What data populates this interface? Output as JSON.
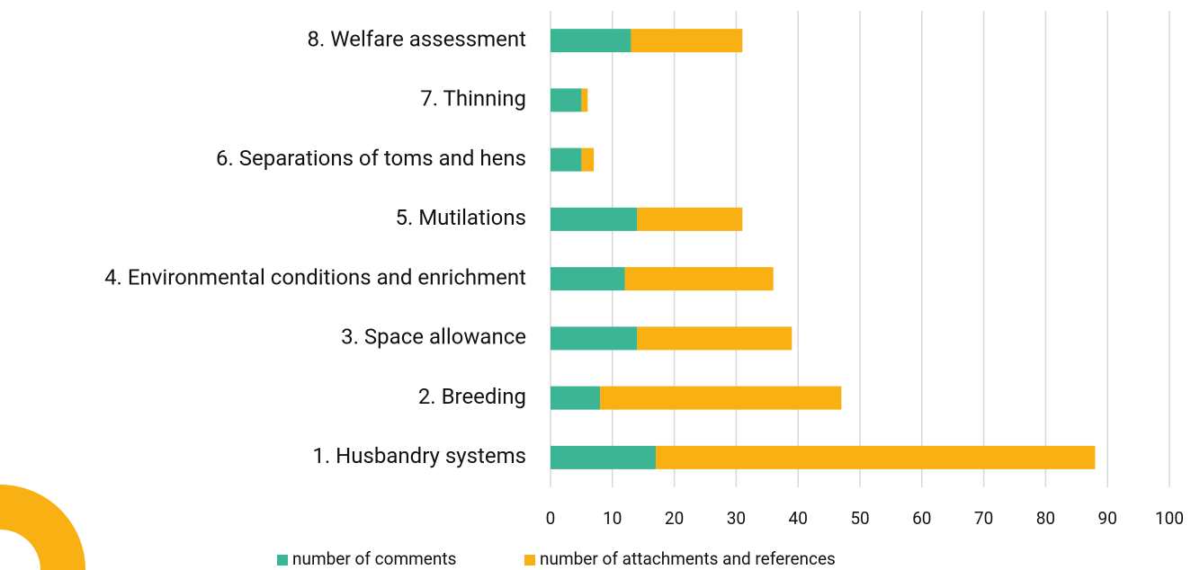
{
  "chart_data": {
    "type": "bar",
    "orientation": "horizontal",
    "stacked": true,
    "categories": [
      "1. Husbandry systems",
      "2. Breeding",
      "3. Space allowance",
      "4. Environmental conditions and enrichment",
      "5. Mutilations",
      "6. Separations of toms and hens",
      "7. Thinning",
      "8. Welfare assessment"
    ],
    "series": [
      {
        "name": "number of comments",
        "color": "#3bb593",
        "values": [
          17,
          8,
          14,
          12,
          14,
          5,
          5,
          13
        ]
      },
      {
        "name": "number of attachments and references",
        "color": "#f9b013",
        "values": [
          71,
          39,
          25,
          24,
          17,
          2,
          1,
          18
        ]
      }
    ],
    "xlim": [
      0,
      100
    ],
    "xticks": [
      0,
      10,
      20,
      30,
      40,
      50,
      60,
      70,
      80,
      90,
      100
    ],
    "grid": true
  }
}
